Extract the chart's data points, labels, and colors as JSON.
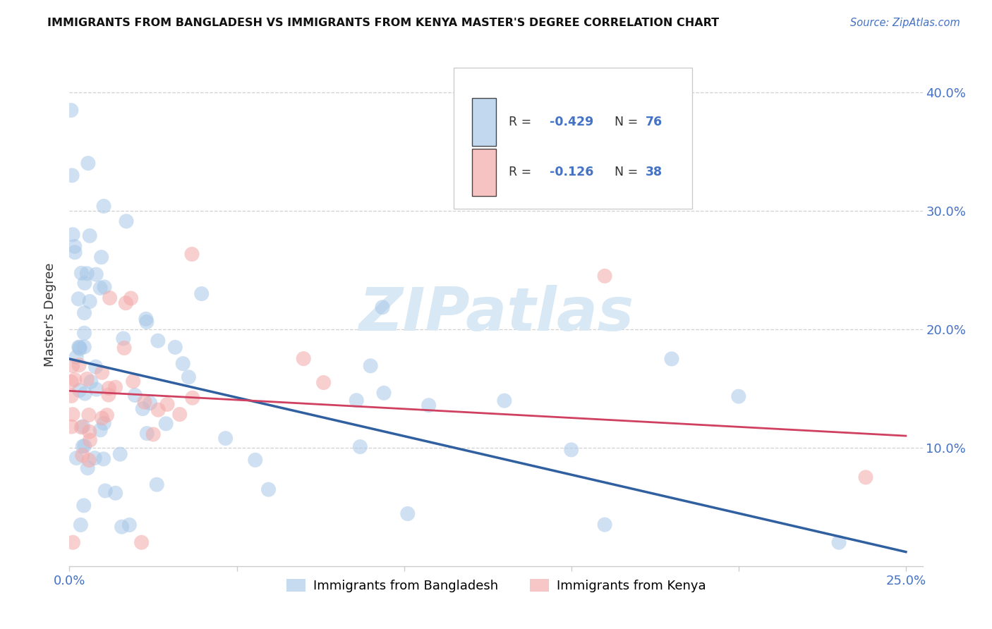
{
  "title": "IMMIGRANTS FROM BANGLADESH VS IMMIGRANTS FROM KENYA MASTER'S DEGREE CORRELATION CHART",
  "source": "Source: ZipAtlas.com",
  "ylabel": "Master's Degree",
  "xlim": [
    0.0,
    0.255
  ],
  "ylim": [
    0.0,
    0.425
  ],
  "xtick_vals": [
    0.0,
    0.05,
    0.1,
    0.15,
    0.2,
    0.25
  ],
  "ytick_vals": [
    0.1,
    0.2,
    0.3,
    0.4
  ],
  "bangladesh_color": "#a8c8e8",
  "kenya_color": "#f4a8a8",
  "bangladesh_line_color": "#3060a0",
  "kenya_line_color": "#d04060",
  "tick_color": "#4472c4",
  "R_bangladesh": -0.429,
  "N_bangladesh": 76,
  "R_kenya": -0.126,
  "N_kenya": 38,
  "watermark_color": "#d8e8f4",
  "bang_line_y0": 0.175,
  "bang_line_y1": 0.012,
  "kenya_line_y0": 0.148,
  "kenya_line_y1": 0.11
}
